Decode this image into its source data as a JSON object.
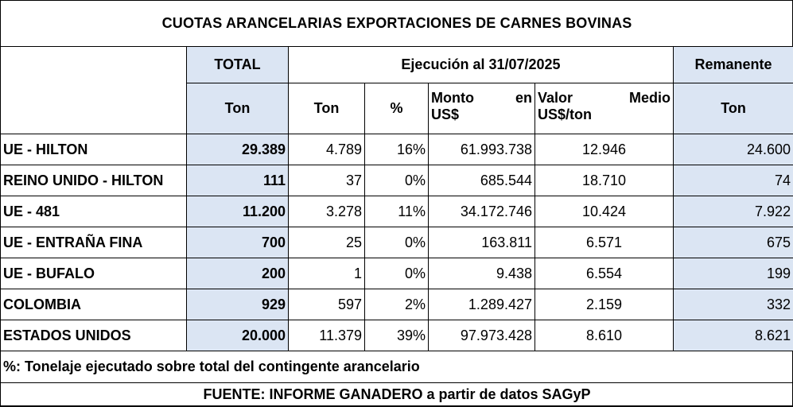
{
  "title": "CUOTAS ARANCELARIAS EXPORTACIONES DE CARNES BOVINAS",
  "header": {
    "total": "TOTAL",
    "ejecucion": "Ejecución al 31/07/2025",
    "remanente": "Remanente"
  },
  "subheader": {
    "total_ton": "Ton",
    "ejec_ton": "Ton",
    "pct": "%",
    "monto_a": "Monto",
    "monto_b": "en",
    "monto_c": "US$",
    "valor_a": "Valor",
    "valor_b": "Medio",
    "valor_c": "US$/ton",
    "rem_ton": "Ton"
  },
  "rows": [
    {
      "name": "UE - HILTON",
      "total": "29.389",
      "ton": "4.789",
      "pct": "16%",
      "monto": "61.993.738",
      "valor": "12.946",
      "remanente": "24.600"
    },
    {
      "name": "REINO UNIDO - HILTON",
      "total": "111",
      "ton": "37",
      "pct": "0%",
      "monto": "685.544",
      "valor": "18.710",
      "remanente": "74"
    },
    {
      "name": "UE - 481",
      "total": "11.200",
      "ton": "3.278",
      "pct": "11%",
      "monto": "34.172.746",
      "valor": "10.424",
      "remanente": "7.922"
    },
    {
      "name": "UE - ENTRAÑA FINA",
      "total": "700",
      "ton": "25",
      "pct": "0%",
      "monto": "163.811",
      "valor": "6.571",
      "remanente": "675"
    },
    {
      "name": "UE - BUFALO",
      "total": "200",
      "ton": "1",
      "pct": "0%",
      "monto": "9.438",
      "valor": "6.554",
      "remanente": "199"
    },
    {
      "name": "COLOMBIA",
      "total": "929",
      "ton": "597",
      "pct": "2%",
      "monto": "1.289.427",
      "valor": "2.159",
      "remanente": "332"
    },
    {
      "name": "ESTADOS UNIDOS",
      "total": "20.000",
      "ton": "11.379",
      "pct": "39%",
      "monto": "97.973.428",
      "valor": "8.610",
      "remanente": "8.621"
    }
  ],
  "note": "%: Tonelaje ejecutado sobre total del contingente arancelario",
  "source": "FUENTE: INFORME GANADERO a partir de datos SAGyP",
  "colors": {
    "highlight": "#dbe5f3",
    "border": "#000000"
  }
}
